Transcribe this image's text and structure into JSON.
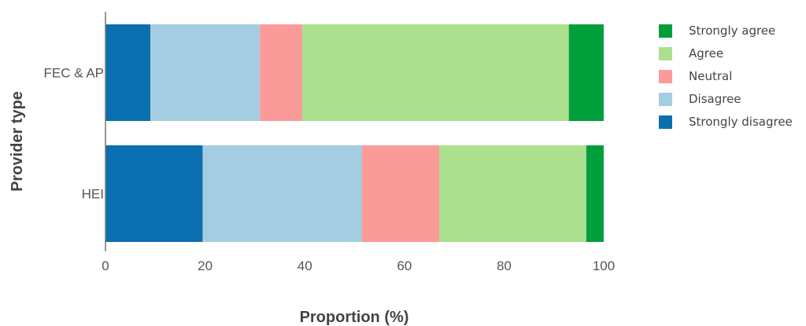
{
  "chart_data": {
    "type": "bar",
    "orientation": "horizontal",
    "stacked": true,
    "categories": [
      "FEC & AP",
      "HEI"
    ],
    "series": [
      {
        "name": "Strongly disagree",
        "color": "#0a6fae",
        "values": [
          9,
          19.5
        ]
      },
      {
        "name": "Disagree",
        "color": "#a5cde1",
        "values": [
          22,
          32
        ]
      },
      {
        "name": "Neutral",
        "color": "#fb9b99",
        "values": [
          8.5,
          15.5
        ]
      },
      {
        "name": "Agree",
        "color": "#abe08f",
        "values": [
          53.5,
          29.5
        ]
      },
      {
        "name": "Strongly agree",
        "color": "#009f3c",
        "values": [
          7,
          3.5
        ]
      }
    ],
    "xlabel": "Proportion (%)",
    "ylabel": "Provider type",
    "xlim": [
      0,
      100
    ],
    "xticks": [
      0,
      20,
      40,
      60,
      80,
      100
    ],
    "grid": false,
    "legend_position": "right",
    "legend_order": [
      "Strongly agree",
      "Agree",
      "Neutral",
      "Disagree",
      "Strongly disagree"
    ]
  }
}
